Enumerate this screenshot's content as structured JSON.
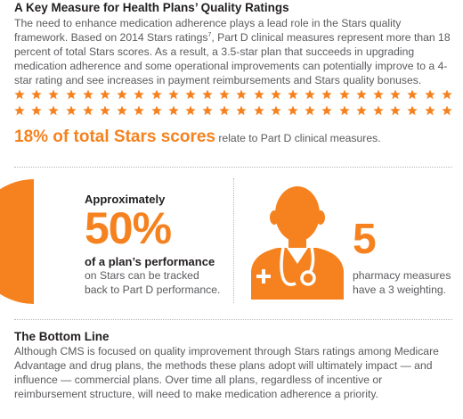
{
  "heading": "A Key Measure for Health Plans’ Quality Ratings",
  "intro": {
    "part1": "The need to enhance medication adherence plays a lead role in the Stars quality framework. Based on 2014 Stars ratings",
    "footnote": "7",
    "part2": ", Part D clinical measures represent more than 18 percent of total Stars scores. As a result, a 3.5-star plan that succeeds in upgrading medication adherence and some operational improvements can potentially improve to a 4-star rating and see increases in payment reimbursements and Stars quality bonuses."
  },
  "star_rows": {
    "count_per_row": 26,
    "rows": 2,
    "icon": "star-icon",
    "color": "#f5821f"
  },
  "stat": {
    "big": "18% of total Stars scores",
    "rest": " relate to Part D clinical measures."
  },
  "left_panel": {
    "approx": "Approximately",
    "percent": "50%",
    "plan": "of a plan’s performance",
    "line1": "on Stars can be tracked",
    "line2": "back to Part D performance.",
    "pie_value": 0.5,
    "pie_color": "#f5821f"
  },
  "right_panel": {
    "icon": "doctor-icon",
    "number": "5",
    "line1": "pharmacy measures",
    "line2": "have a 3 weighting."
  },
  "bottom": {
    "title": "The Bottom Line",
    "text": "Although CMS is focused on quality improvement through Stars ratings among Medicare Advantage and drug plans, the methods these plans adopt will ultimately impact — and influence — commercial plans. Over time all plans, regardless of incentive or reimbursement structure, will need to make medication adherence a priority."
  },
  "colors": {
    "accent": "#f5821f",
    "text": "#5a5b5e",
    "heading": "#231f20"
  }
}
